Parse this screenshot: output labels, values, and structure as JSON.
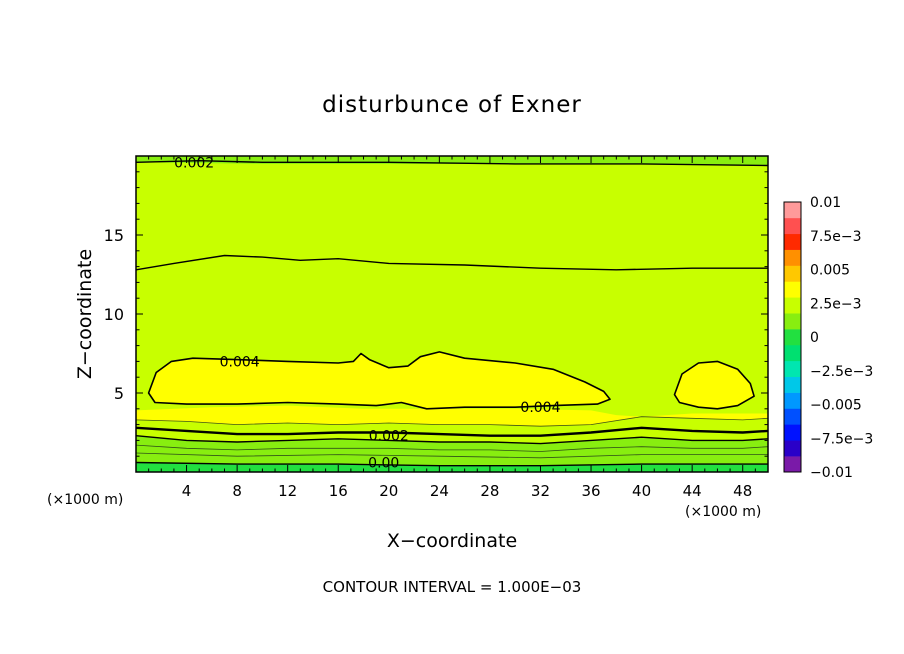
{
  "chart_data": {
    "type": "heatmap",
    "title": "disturbunce of Exner",
    "xlabel": "X−coordinate",
    "ylabel": "Z−coordinate",
    "x_unit_left": "(×1000 m)",
    "x_unit_right": "(×1000 m)",
    "footer": "CONTOUR INTERVAL = 1.000E−03",
    "xlim": [
      0,
      50
    ],
    "ylim": [
      0,
      20
    ],
    "x_ticks": [
      4,
      8,
      12,
      16,
      20,
      24,
      28,
      32,
      36,
      40,
      44,
      48
    ],
    "x_tick_labels": [
      "4",
      "8",
      "12",
      "16",
      "20",
      "24",
      "28",
      "32",
      "36",
      "40",
      "44",
      "48"
    ],
    "y_ticks": [
      5,
      10,
      15
    ],
    "y_tick_labels": [
      "5",
      "10",
      "15"
    ],
    "colorbar": {
      "levels": [
        -0.01,
        -0.00875,
        -0.0075,
        -0.00625,
        -0.005,
        -0.00375,
        -0.0025,
        -0.00125,
        0,
        0.00125,
        0.0025,
        0.00375,
        0.005,
        0.00625,
        0.0075,
        0.00875,
        0.01
      ],
      "colors": [
        "#7a1aa8",
        "#2a00c8",
        "#0012ff",
        "#0050ff",
        "#0098ff",
        "#00c8e8",
        "#00e6b0",
        "#00e070",
        "#22e040",
        "#88ee10",
        "#c8ff00",
        "#ffff00",
        "#ffc800",
        "#ff9000",
        "#ff2a00",
        "#ff5050",
        "#ff9a9a"
      ],
      "labels": [
        "0.01",
        "7.5e−3",
        "0.005",
        "2.5e−3",
        "0",
        "−2.5e−3",
        "−0.005",
        "−7.5e−3",
        "−0.01"
      ],
      "label_values": [
        0.01,
        0.0075,
        0.005,
        0.0025,
        0,
        -0.0025,
        -0.005,
        -0.0075,
        -0.01
      ]
    },
    "contour_labels": [
      {
        "text": "0.002",
        "x": 4.6,
        "z": 19.6
      },
      {
        "text": "0.004",
        "x": 8.2,
        "z": 7.0
      },
      {
        "text": "0.004",
        "x": 32.0,
        "z": 4.1
      },
      {
        "text": "0.002",
        "x": 20.0,
        "z": 2.3
      },
      {
        "text": "0.00",
        "x": 19.6,
        "z": 0.6
      }
    ],
    "bands": [
      {
        "value": 0.00225,
        "top": [
          [
            0,
            20
          ],
          [
            50,
            20
          ]
        ]
      },
      {
        "value": 0.0025,
        "top": [
          [
            0,
            19.6
          ],
          [
            10,
            19.5
          ],
          [
            25,
            19.5
          ],
          [
            40,
            19.5
          ],
          [
            50,
            19.4
          ]
        ]
      },
      {
        "value": 0.00275,
        "top": [
          [
            0,
            17.8
          ],
          [
            10,
            17.6
          ],
          [
            25,
            17.6
          ],
          [
            40,
            17.3
          ],
          [
            50,
            17.5
          ]
        ]
      },
      {
        "value": 0.003,
        "top": [
          [
            0,
            12.8
          ],
          [
            3,
            13.2
          ],
          [
            7,
            13.7
          ],
          [
            10,
            13.6
          ],
          [
            13,
            13.4
          ],
          [
            16,
            13.5
          ],
          [
            20,
            13.2
          ],
          [
            26,
            13.1
          ],
          [
            32,
            12.9
          ],
          [
            38,
            12.8
          ],
          [
            44,
            12.9
          ],
          [
            50,
            12.9
          ]
        ]
      },
      {
        "value": 0.0035,
        "top": [
          [
            0,
            9.8
          ],
          [
            4,
            10.2
          ],
          [
            8,
            10.4
          ],
          [
            12,
            10.2
          ],
          [
            16,
            10.0
          ],
          [
            17.5,
            10.4
          ],
          [
            19,
            10.0
          ],
          [
            24,
            10.0
          ],
          [
            30,
            9.8
          ],
          [
            36,
            9.8
          ],
          [
            39,
            8.6
          ],
          [
            41,
            9.2
          ],
          [
            45,
            9.5
          ],
          [
            50,
            9.3
          ]
        ]
      },
      {
        "value": 0.00375,
        "top": [
          [
            0,
            3.9
          ],
          [
            6,
            4.1
          ],
          [
            12,
            4.2
          ],
          [
            18,
            4.0
          ],
          [
            24,
            4.0
          ],
          [
            30,
            4.0
          ],
          [
            36,
            3.9
          ],
          [
            38,
            3.6
          ],
          [
            40,
            3.5
          ],
          [
            44,
            3.7
          ],
          [
            50,
            3.7
          ]
        ]
      },
      {
        "value": 0.00325,
        "top": [
          [
            0,
            3.3
          ],
          [
            4,
            3.2
          ],
          [
            8,
            3.0
          ],
          [
            12,
            3.1
          ],
          [
            16,
            3.0
          ],
          [
            20,
            3.1
          ],
          [
            24,
            3.0
          ],
          [
            28,
            3.0
          ],
          [
            32,
            2.9
          ],
          [
            36,
            3.0
          ],
          [
            40,
            3.5
          ],
          [
            44,
            3.4
          ],
          [
            48,
            3.3
          ],
          [
            50,
            3.4
          ]
        ]
      },
      {
        "value": 0.00275,
        "top": [
          [
            0,
            2.8
          ],
          [
            4,
            2.6
          ],
          [
            8,
            2.4
          ],
          [
            12,
            2.4
          ],
          [
            16,
            2.5
          ],
          [
            20,
            2.5
          ],
          [
            24,
            2.4
          ],
          [
            28,
            2.3
          ],
          [
            32,
            2.3
          ],
          [
            36,
            2.5
          ],
          [
            40,
            2.8
          ],
          [
            44,
            2.6
          ],
          [
            48,
            2.5
          ],
          [
            50,
            2.6
          ]
        ]
      },
      {
        "value": 0.00225,
        "top": [
          [
            0,
            2.3
          ],
          [
            4,
            2.0
          ],
          [
            8,
            1.9
          ],
          [
            12,
            2.0
          ],
          [
            16,
            2.1
          ],
          [
            20,
            2.0
          ],
          [
            24,
            1.9
          ],
          [
            28,
            1.9
          ],
          [
            32,
            1.8
          ],
          [
            36,
            2.0
          ],
          [
            40,
            2.2
          ],
          [
            44,
            2.0
          ],
          [
            48,
            2.0
          ],
          [
            50,
            2.1
          ]
        ]
      },
      {
        "value": 0.00175,
        "top": [
          [
            0,
            1.7
          ],
          [
            4,
            1.5
          ],
          [
            8,
            1.4
          ],
          [
            12,
            1.5
          ],
          [
            16,
            1.5
          ],
          [
            20,
            1.5
          ],
          [
            24,
            1.4
          ],
          [
            28,
            1.4
          ],
          [
            32,
            1.3
          ],
          [
            36,
            1.5
          ],
          [
            40,
            1.6
          ],
          [
            44,
            1.5
          ],
          [
            48,
            1.5
          ],
          [
            50,
            1.6
          ]
        ]
      },
      {
        "value": 0.00125,
        "top": [
          [
            0,
            1.2
          ],
          [
            8,
            1.0
          ],
          [
            16,
            1.1
          ],
          [
            24,
            1.0
          ],
          [
            32,
            0.9
          ],
          [
            40,
            1.1
          ],
          [
            50,
            1.1
          ]
        ]
      },
      {
        "value": 0.0005,
        "top": [
          [
            0,
            0.6
          ],
          [
            8,
            0.5
          ],
          [
            16,
            0.5
          ],
          [
            24,
            0.4
          ],
          [
            32,
            0.4
          ],
          [
            40,
            0.5
          ],
          [
            50,
            0.5
          ]
        ]
      }
    ],
    "regions": [
      {
        "value": 0.00425,
        "outline": [
          [
            1.0,
            5.0
          ],
          [
            1.6,
            6.3
          ],
          [
            2.8,
            7.0
          ],
          [
            4.5,
            7.2
          ],
          [
            8.5,
            7.1
          ],
          [
            12,
            7.0
          ],
          [
            16,
            6.9
          ],
          [
            17.2,
            7.0
          ],
          [
            17.8,
            7.5
          ],
          [
            18.5,
            7.1
          ],
          [
            20,
            6.6
          ],
          [
            21.5,
            6.7
          ],
          [
            22.5,
            7.3
          ],
          [
            24,
            7.6
          ],
          [
            26,
            7.2
          ],
          [
            30,
            6.9
          ],
          [
            33,
            6.5
          ],
          [
            35.5,
            5.7
          ],
          [
            37,
            5.1
          ],
          [
            37.5,
            4.6
          ],
          [
            36.5,
            4.3
          ],
          [
            33,
            4.2
          ],
          [
            30,
            4.1
          ],
          [
            26,
            4.1
          ],
          [
            23,
            4.0
          ],
          [
            21,
            4.4
          ],
          [
            19,
            4.2
          ],
          [
            16,
            4.3
          ],
          [
            12,
            4.4
          ],
          [
            8,
            4.3
          ],
          [
            4,
            4.3
          ],
          [
            1.5,
            4.4
          ]
        ]
      },
      {
        "value": 0.00425,
        "outline": [
          [
            42.6,
            4.9
          ],
          [
            43.2,
            6.2
          ],
          [
            44.5,
            6.9
          ],
          [
            46,
            7.0
          ],
          [
            47.6,
            6.5
          ],
          [
            48.6,
            5.6
          ],
          [
            48.9,
            4.8
          ],
          [
            47.6,
            4.2
          ],
          [
            46,
            4.0
          ],
          [
            44.5,
            4.1
          ],
          [
            43.0,
            4.4
          ]
        ]
      }
    ],
    "contour_lines": [
      {
        "value": 0.002,
        "points": [
          [
            0,
            19.6
          ],
          [
            5,
            19.7
          ],
          [
            10,
            19.6
          ],
          [
            20,
            19.6
          ],
          [
            30,
            19.5
          ],
          [
            40,
            19.5
          ],
          [
            50,
            19.4
          ]
        ]
      },
      {
        "value": 0.003,
        "points": [
          [
            0,
            12.8
          ],
          [
            3,
            13.2
          ],
          [
            7,
            13.7
          ],
          [
            10,
            13.6
          ],
          [
            13,
            13.4
          ],
          [
            16,
            13.5
          ],
          [
            20,
            13.2
          ],
          [
            26,
            13.1
          ],
          [
            32,
            12.9
          ],
          [
            38,
            12.8
          ],
          [
            44,
            12.9
          ],
          [
            50,
            12.9
          ]
        ]
      },
      {
        "value": 0.002,
        "points": [
          [
            0,
            2.3
          ],
          [
            4,
            2.0
          ],
          [
            8,
            1.9
          ],
          [
            12,
            2.0
          ],
          [
            16,
            2.1
          ],
          [
            20,
            2.0
          ],
          [
            24,
            1.9
          ],
          [
            28,
            1.9
          ],
          [
            32,
            1.8
          ],
          [
            36,
            2.0
          ],
          [
            40,
            2.2
          ],
          [
            44,
            2.0
          ],
          [
            48,
            2.0
          ],
          [
            50,
            2.1
          ]
        ]
      },
      {
        "value": 0.0,
        "points": [
          [
            0,
            0.6
          ],
          [
            8,
            0.5
          ],
          [
            16,
            0.5
          ],
          [
            24,
            0.4
          ],
          [
            32,
            0.4
          ],
          [
            40,
            0.5
          ],
          [
            50,
            0.5
          ]
        ]
      }
    ],
    "thin_lines": [
      {
        "points": [
          [
            0,
            3.3
          ],
          [
            4,
            3.2
          ],
          [
            8,
            3.0
          ],
          [
            12,
            3.1
          ],
          [
            16,
            3.0
          ],
          [
            20,
            3.1
          ],
          [
            24,
            3.0
          ],
          [
            28,
            3.0
          ],
          [
            32,
            2.9
          ],
          [
            36,
            3.0
          ],
          [
            40,
            3.5
          ],
          [
            44,
            3.4
          ],
          [
            48,
            3.3
          ],
          [
            50,
            3.4
          ]
        ]
      },
      {
        "points": [
          [
            0,
            1.7
          ],
          [
            4,
            1.5
          ],
          [
            8,
            1.4
          ],
          [
            12,
            1.5
          ],
          [
            16,
            1.5
          ],
          [
            20,
            1.5
          ],
          [
            24,
            1.4
          ],
          [
            28,
            1.4
          ],
          [
            32,
            1.3
          ],
          [
            36,
            1.5
          ],
          [
            40,
            1.6
          ],
          [
            44,
            1.5
          ],
          [
            48,
            1.5
          ],
          [
            50,
            1.6
          ]
        ]
      },
      {
        "points": [
          [
            0,
            1.2
          ],
          [
            8,
            1.0
          ],
          [
            16,
            1.1
          ],
          [
            24,
            1.0
          ],
          [
            32,
            0.9
          ],
          [
            40,
            1.1
          ],
          [
            50,
            1.1
          ]
        ]
      }
    ],
    "bold_lines": [
      {
        "points": [
          [
            0,
            2.8
          ],
          [
            4,
            2.6
          ],
          [
            8,
            2.4
          ],
          [
            12,
            2.4
          ],
          [
            16,
            2.5
          ],
          [
            20,
            2.5
          ],
          [
            24,
            2.4
          ],
          [
            28,
            2.3
          ],
          [
            32,
            2.3
          ],
          [
            36,
            2.5
          ],
          [
            40,
            2.8
          ],
          [
            44,
            2.6
          ],
          [
            48,
            2.5
          ],
          [
            50,
            2.6
          ]
        ]
      }
    ]
  }
}
